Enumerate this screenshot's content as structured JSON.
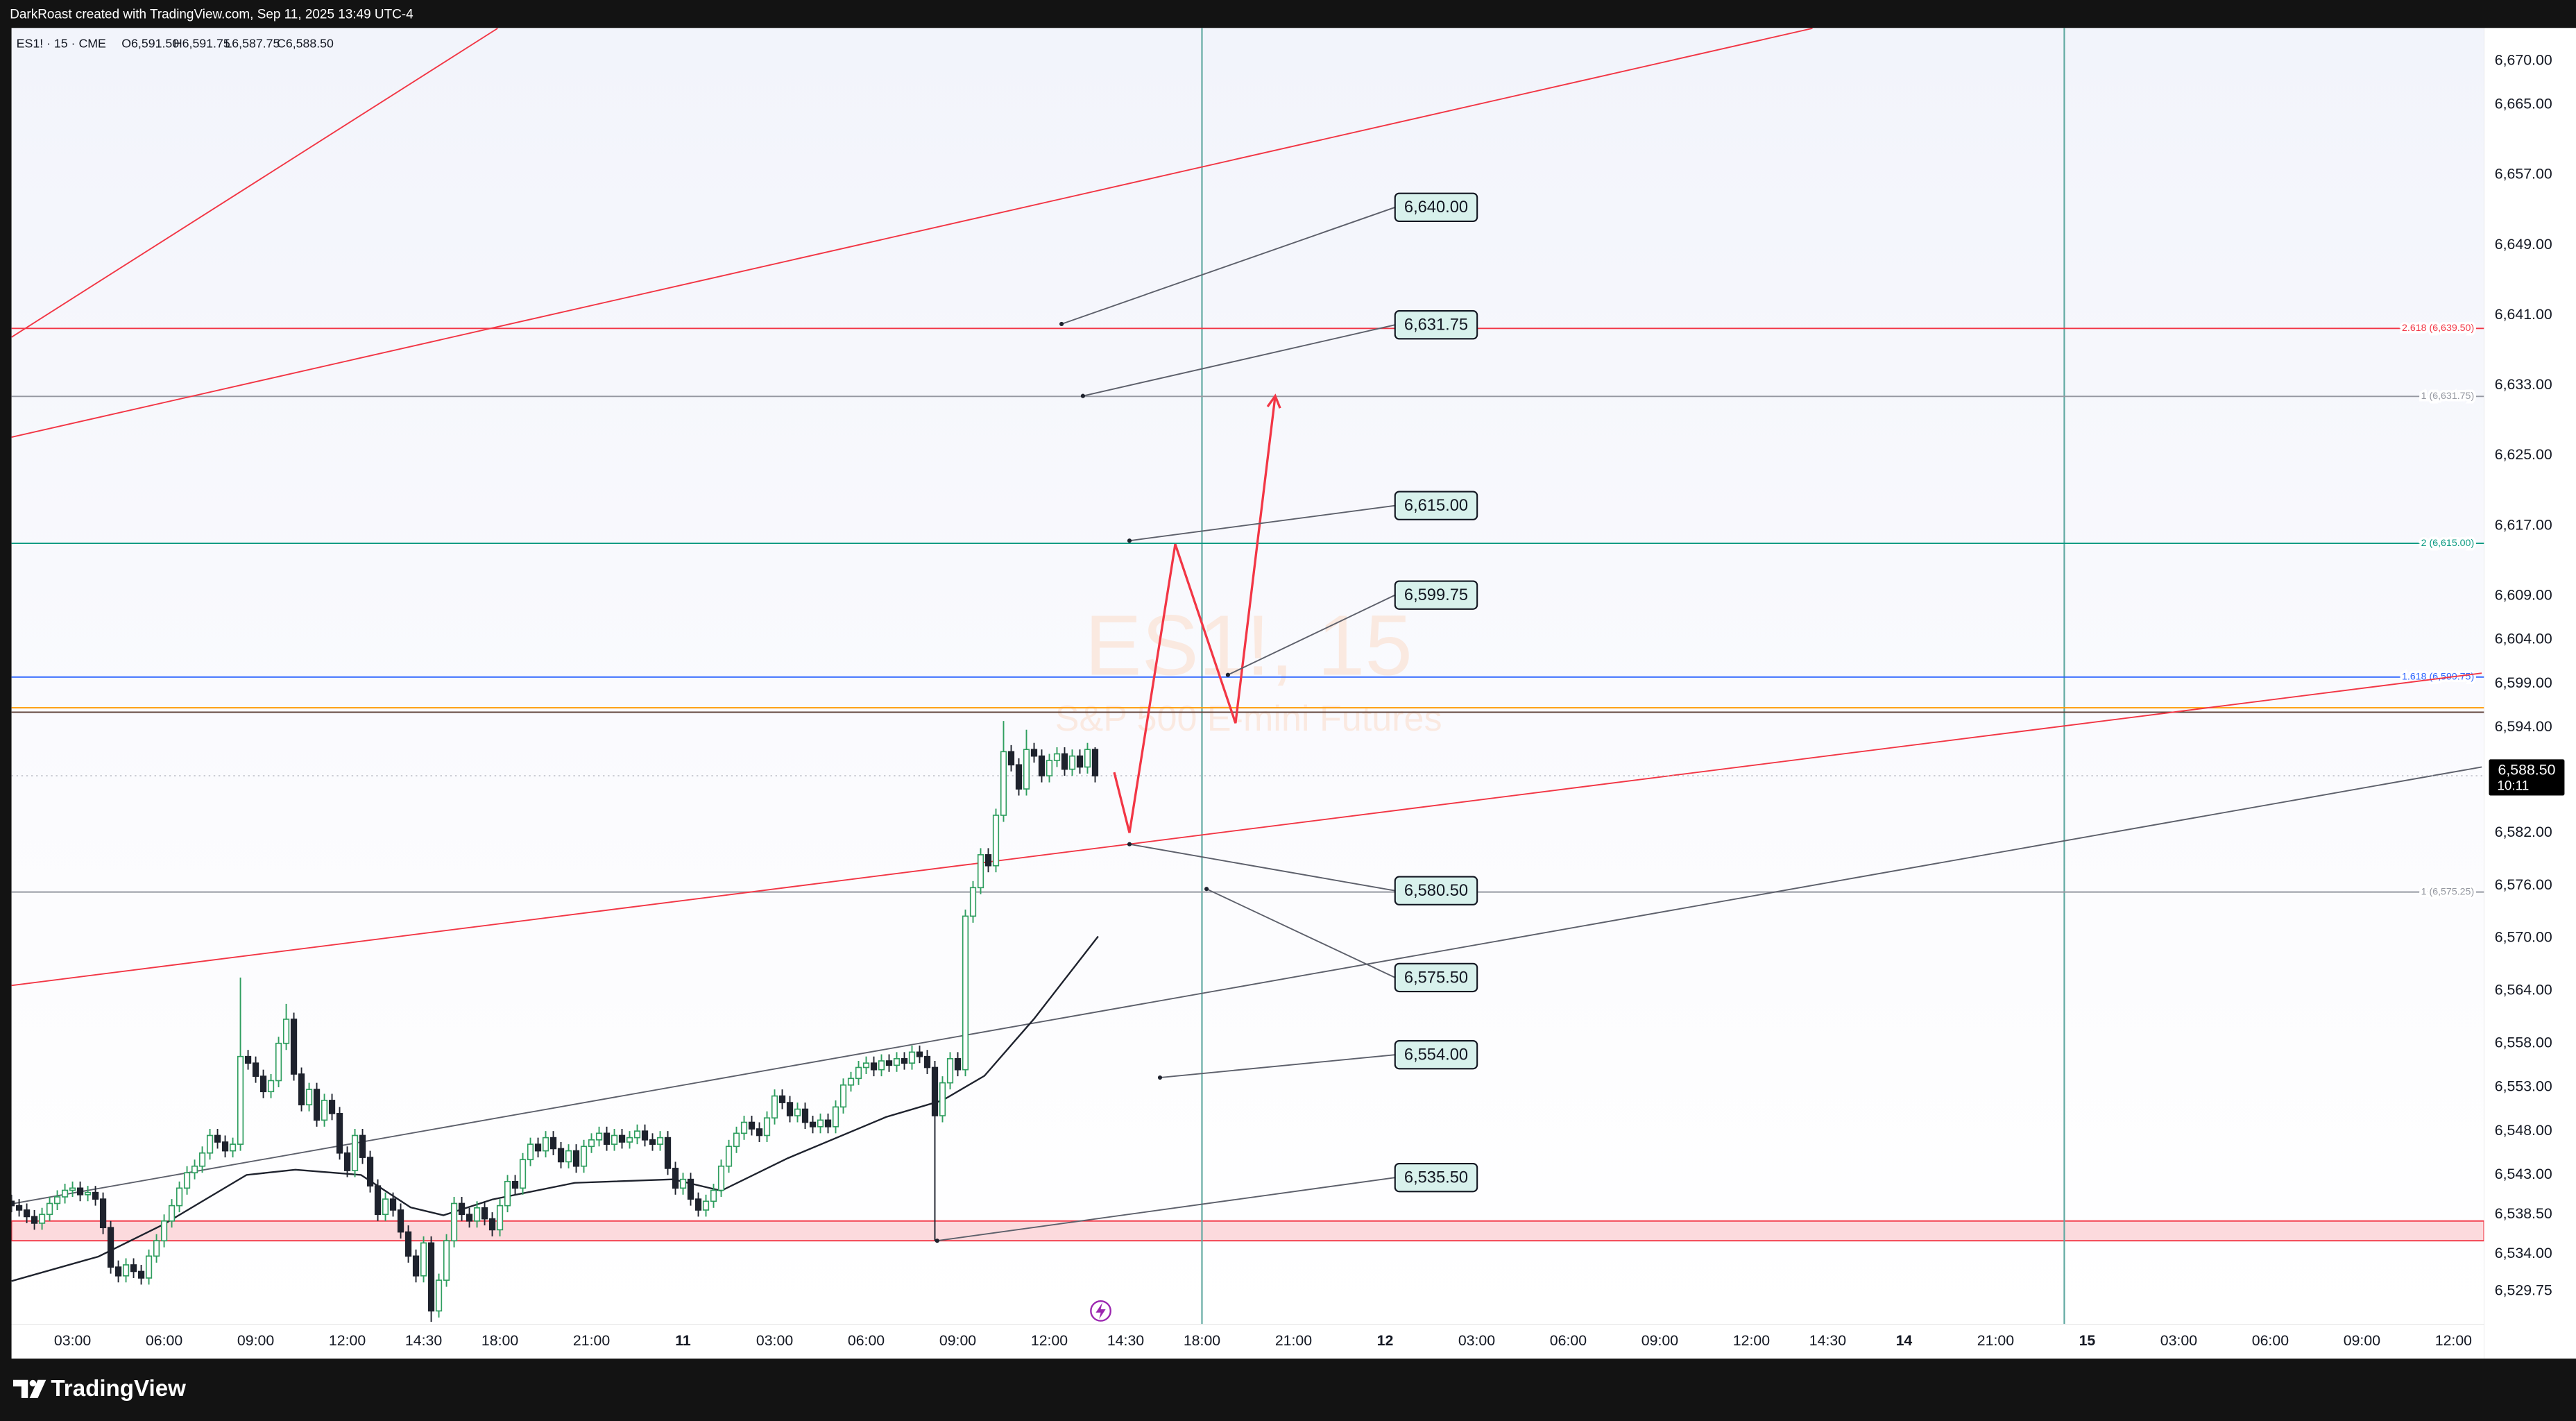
{
  "header": {
    "credit": "DarkRoast created with TradingView.com, Sep 11, 2025 13:49 UTC-4"
  },
  "footer": {
    "brand": "TradingView"
  },
  "chart_data": {
    "type": "candlestick",
    "symbol": "ES1! · 15 · CME",
    "ohlc_legend": [
      {
        "value": 6591.5,
        "label": "O6,591.50"
      },
      {
        "value": 6591.75,
        "label": "H6,591.75"
      },
      {
        "value": 6587.75,
        "label": "L6,587.75"
      },
      {
        "value": 6588.5,
        "label": "C6,588.50"
      }
    ],
    "watermark": {
      "title": "ES1!, 15",
      "subtitle": "S&P 500 E-mini Futures"
    },
    "up_color": "#2f9e5f",
    "down_color": "#1e222d",
    "xlim": [
      0,
      324
    ],
    "xticks": [
      {
        "value": 8,
        "label": "03:00"
      },
      {
        "value": 20,
        "label": "06:00"
      },
      {
        "value": 32,
        "label": "09:00"
      },
      {
        "value": 44,
        "label": "12:00"
      },
      {
        "value": 54,
        "label": "14:30"
      },
      {
        "value": 64,
        "label": "18:00"
      },
      {
        "value": 76,
        "label": "21:00"
      },
      {
        "value": 88,
        "label": "11"
      },
      {
        "value": 100,
        "label": "03:00"
      },
      {
        "value": 112,
        "label": "06:00"
      },
      {
        "value": 124,
        "label": "09:00"
      },
      {
        "value": 136,
        "label": "12:00"
      },
      {
        "value": 146,
        "label": "14:30"
      },
      {
        "value": 156,
        "label": "18:00"
      },
      {
        "value": 168,
        "label": "21:00"
      },
      {
        "value": 180,
        "label": "12"
      },
      {
        "value": 192,
        "label": "03:00"
      },
      {
        "value": 204,
        "label": "06:00"
      },
      {
        "value": 216,
        "label": "09:00"
      },
      {
        "value": 228,
        "label": "12:00"
      },
      {
        "value": 238,
        "label": "14:30"
      },
      {
        "value": 248,
        "label": "14"
      },
      {
        "value": 260,
        "label": "21:00"
      },
      {
        "value": 272,
        "label": "15"
      },
      {
        "value": 284,
        "label": "03:00"
      },
      {
        "value": 296,
        "label": "06:00"
      },
      {
        "value": 308,
        "label": "09:00"
      },
      {
        "value": 320,
        "label": "12:00"
      }
    ],
    "ylim": [
      6526,
      6673.75
    ],
    "yticks": [
      {
        "value": 6670,
        "label": "6,670.00"
      },
      {
        "value": 6665,
        "label": "6,665.00"
      },
      {
        "value": 6657,
        "label": "6,657.00"
      },
      {
        "value": 6649,
        "label": "6,649.00"
      },
      {
        "value": 6641,
        "label": "6,641.00"
      },
      {
        "value": 6633,
        "label": "6,633.00"
      },
      {
        "value": 6625,
        "label": "6,625.00"
      },
      {
        "value": 6617,
        "label": "6,617.00"
      },
      {
        "value": 6609,
        "label": "6,609.00"
      },
      {
        "value": 6604,
        "label": "6,604.00"
      },
      {
        "value": 6599,
        "label": "6,599.00"
      },
      {
        "value": 6594,
        "label": "6,594.00"
      },
      {
        "value": 6582,
        "label": "6,582.00"
      },
      {
        "value": 6576,
        "label": "6,576.00"
      },
      {
        "value": 6570,
        "label": "6,570.00"
      },
      {
        "value": 6564,
        "label": "6,564.00"
      },
      {
        "value": 6558,
        "label": "6,558.00"
      },
      {
        "value": 6553,
        "label": "6,553.00"
      },
      {
        "value": 6548,
        "label": "6,548.00"
      },
      {
        "value": 6543,
        "label": "6,543.00"
      },
      {
        "value": 6538.5,
        "label": "6,538.50"
      },
      {
        "value": 6534,
        "label": "6,534.00"
      },
      {
        "value": 6529.75,
        "label": "6,529.75"
      }
    ],
    "open": [
      6540,
      6539.5,
      6539,
      6538.25,
      6537.5,
      6538.5,
      6539.75,
      6540.5,
      6541.25,
      6541.5,
      6540.75,
      6541,
      6540.25,
      6537,
      6532.5,
      6531.5,
      6532.75,
      6532,
      6531.25,
      6533.75,
      6535.5,
      6537.75,
      6539.5,
      6541.5,
      6543.25,
      6544,
      6545.5,
      6547.5,
      6546.75,
      6545.75,
      6546.5,
      6556.5,
      6555.75,
      6554.25,
      6552.5,
      6553.75,
      6558,
      6560.75,
      6554.5,
      6551,
      6552.75,
      6549.25,
      6551.5,
      6550,
      6545.5,
      6543.5,
      6547.5,
      6545,
      6541.75,
      6538.5,
      6540.25,
      6539,
      6536.5,
      6533.75,
      6531.5,
      6535.25,
      6527.5,
      6531,
      6535.5,
      6539.75,
      6538.5,
      6537.75,
      6539.25,
      6538,
      6536.75,
      6539.5,
      6542.25,
      6541.5,
      6544.75,
      6546.5,
      6545.75,
      6547.25,
      6546,
      6544.5,
      6545.75,
      6544,
      6546.25,
      6547,
      6547.75,
      6546.5,
      6547.5,
      6546.75,
      6547.25,
      6548,
      6547,
      6546.5,
      6547.25,
      6543.75,
      6541.5,
      6542.5,
      6540.25,
      6539,
      6540,
      6541.25,
      6544,
      6546.25,
      6547.75,
      6549,
      6548.25,
      6547.5,
      6549.5,
      6552,
      6551.25,
      6549.75,
      6550.5,
      6549,
      6548.5,
      6549.25,
      6548.5,
      6550.75,
      6553.25,
      6554,
      6555.25,
      6555.75,
      6555,
      6556,
      6555.5,
      6556.25,
      6555.75,
      6557,
      6556.5,
      6555.25,
      6549.75,
      6553.5,
      6556.25,
      6555,
      6572.5,
      6575.75,
      6579.5,
      6578.25,
      6584,
      6591.25,
      6589.75,
      6587,
      6591.5,
      6590.75,
      6588.5,
      6590.25,
      6591,
      6589.25,
      6590.75,
      6589.5,
      6591.5
    ],
    "high": [
      6540.75,
      6540.25,
      6539.75,
      6539,
      6539.25,
      6540.5,
      6541.25,
      6542,
      6542.25,
      6542.25,
      6541.75,
      6541.75,
      6541,
      6537.75,
      6533.25,
      6533.5,
      6533.5,
      6532.75,
      6534.5,
      6536.25,
      6538.5,
      6540.25,
      6542.25,
      6544,
      6544.75,
      6546.25,
      6548.25,
      6548.25,
      6547.5,
      6547.25,
      6565.5,
      6557.25,
      6556.5,
      6555,
      6554.5,
      6558.75,
      6562.5,
      6561.5,
      6555.25,
      6553.5,
      6553.5,
      6552.25,
      6552.25,
      6550.75,
      6546.25,
      6548.25,
      6548.25,
      6545.75,
      6542.5,
      6541,
      6541,
      6539.75,
      6537.25,
      6534.5,
      6536,
      6536,
      6531.75,
      6536.25,
      6540.5,
      6540.5,
      6539.25,
      6540,
      6540,
      6538.75,
      6540.25,
      6543,
      6543,
      6545.5,
      6547.25,
      6547.25,
      6548,
      6548,
      6546.75,
      6546.5,
      6546.5,
      6547,
      6547.75,
      6548.5,
      6548.5,
      6548.25,
      6548.25,
      6548,
      6548.75,
      6548.75,
      6547.75,
      6548,
      6548,
      6544.5,
      6543.25,
      6543.25,
      6541,
      6540.75,
      6542,
      6544.75,
      6547,
      6548.5,
      6549.75,
      6549.75,
      6549,
      6550.25,
      6552.75,
      6552.75,
      6552,
      6551.25,
      6551.25,
      6549.75,
      6550,
      6550,
      6551.5,
      6554,
      6554.75,
      6556,
      6556.5,
      6556.5,
      6556.75,
      6556.75,
      6557,
      6557,
      6557.75,
      6557.75,
      6557.25,
      6556,
      6554.25,
      6557,
      6557,
      6573.25,
      6576.5,
      6580.25,
      6580.25,
      6584.75,
      6594.75,
      6592,
      6590.5,
      6593.75,
      6592.25,
      6591.5,
      6591,
      6591.75,
      6591.75,
      6591.5,
      6591.5,
      6592.25,
      6591.75
    ],
    "low": [
      6538.75,
      6538.25,
      6537.5,
      6536.75,
      6536.75,
      6537.75,
      6539,
      6539.75,
      6540.5,
      6540,
      6540,
      6539.5,
      6536.25,
      6531.75,
      6530.75,
      6530.75,
      6531.25,
      6530.5,
      6530.5,
      6533,
      6534.75,
      6537,
      6538.75,
      6540.75,
      6542.5,
      6543.25,
      6544.75,
      6546,
      6545,
      6545,
      6545.75,
      6555,
      6553.5,
      6551.75,
      6551.75,
      6553,
      6557.25,
      6553.75,
      6550.25,
      6550.25,
      6548.5,
      6548.5,
      6549.25,
      6544.75,
      6542.75,
      6542.75,
      6544.25,
      6541,
      6537.75,
      6537.75,
      6538.25,
      6535.75,
      6533,
      6530.75,
      6530.75,
      6526.25,
      6526.75,
      6530.25,
      6534.75,
      6537.75,
      6537,
      6537,
      6537.25,
      6536,
      6536,
      6538.75,
      6540.75,
      6540.75,
      6544,
      6545,
      6545,
      6545.25,
      6543.75,
      6543.75,
      6543.25,
      6543.25,
      6545.5,
      6546.25,
      6545.75,
      6545.75,
      6546,
      6546,
      6546.5,
      6546.25,
      6545.75,
      6545.75,
      6543,
      6540.75,
      6540.75,
      6539.5,
      6538.25,
      6538.25,
      6539.25,
      6540.5,
      6543.25,
      6545.5,
      6547,
      6547.5,
      6546.75,
      6546.75,
      6548.75,
      6550.5,
      6549,
      6549,
      6548.25,
      6547.75,
      6547.75,
      6547.75,
      6547.75,
      6550,
      6552.5,
      6553.25,
      6554.5,
      6554.25,
      6554.25,
      6554.75,
      6554.75,
      6555,
      6555,
      6555.75,
      6554.5,
      6535.5,
      6549,
      6552.75,
      6554.25,
      6554.25,
      6571.75,
      6575,
      6577.5,
      6577.5,
      6583.25,
      6589,
      6586.25,
      6586.25,
      6590,
      6587.75,
      6587.75,
      6589.5,
      6588.5,
      6588.5,
      6588.75,
      6588.75,
      6587.75
    ],
    "close": [
      6539.5,
      6539,
      6538.25,
      6537.5,
      6538.5,
      6539.75,
      6540.5,
      6541.25,
      6541.5,
      6540.75,
      6541,
      6540.25,
      6537,
      6532.5,
      6531.5,
      6532.75,
      6532,
      6531.25,
      6533.75,
      6535.5,
      6537.75,
      6539.5,
      6541.5,
      6543.25,
      6544,
      6545.5,
      6547.5,
      6546.75,
      6545.75,
      6546.5,
      6556.5,
      6555.75,
      6554.25,
      6552.5,
      6553.75,
      6558,
      6560.75,
      6554.5,
      6551,
      6552.75,
      6549.25,
      6551.5,
      6550,
      6545.5,
      6543.5,
      6547.5,
      6545,
      6541.75,
      6538.5,
      6540.25,
      6539,
      6536.5,
      6533.75,
      6531.5,
      6535.25,
      6527.5,
      6531,
      6535.5,
      6539.75,
      6538.5,
      6537.75,
      6539.25,
      6538,
      6536.75,
      6539.5,
      6542.25,
      6541.5,
      6544.75,
      6546.5,
      6545.75,
      6547.25,
      6546,
      6544.5,
      6545.75,
      6544,
      6546.25,
      6547,
      6547.75,
      6546.5,
      6547.5,
      6546.75,
      6547.25,
      6548,
      6547,
      6546.5,
      6547.25,
      6543.75,
      6541.5,
      6542.5,
      6540.25,
      6539,
      6540,
      6541.25,
      6544,
      6546.25,
      6547.75,
      6549,
      6548.25,
      6547.5,
      6549.5,
      6552,
      6551.25,
      6549.75,
      6550.5,
      6549,
      6548.5,
      6549.25,
      6548.5,
      6550.75,
      6553.25,
      6554,
      6555.25,
      6555.75,
      6555,
      6556,
      6555.5,
      6556.25,
      6555.75,
      6557,
      6556.5,
      6555.25,
      6549.75,
      6553.5,
      6556.25,
      6555,
      6572.5,
      6575.75,
      6579.5,
      6578.25,
      6584,
      6591.25,
      6589.75,
      6587,
      6591.5,
      6590.75,
      6588.5,
      6590.25,
      6591,
      6589.25,
      6590.75,
      6589.5,
      6591.5,
      6588.5
    ],
    "moving_average": {
      "color": "#1e222d",
      "x": [
        0,
        11.4,
        20,
        30.8,
        37.2,
        45.8,
        52.3,
        56.6,
        63,
        73.8,
        86.7,
        93,
        101.7,
        114.6,
        122,
        127.5,
        134,
        142.4
      ],
      "values": [
        6530.9,
        6533.7,
        6537.4,
        6543,
        6543.6,
        6543,
        6539.3,
        6538.4,
        6540.2,
        6542.1,
        6542.5,
        6541.2,
        6544.9,
        6549.6,
        6551.5,
        6554.3,
        6560.8,
        6570.2
      ]
    },
    "last_price": {
      "value": 6588.5,
      "label": "6,588.50"
    },
    "countdown": "10:11",
    "zone": {
      "from": 6535.5,
      "to": 6537.75,
      "color": "#f23645"
    },
    "hlines": [
      {
        "value": 6639.5,
        "color": "#f23645",
        "label": "2.618 (6,639.50)"
      },
      {
        "value": 6631.75,
        "color": "#9598a1",
        "label": "1 (6,631.75)"
      },
      {
        "value": 6615,
        "color": "#089981",
        "label": "2 (6,615.00)"
      },
      {
        "value": 6599.75,
        "color": "#2962ff",
        "label": "1.618 (6,599.75)"
      },
      {
        "value": 6596.25,
        "color": "#ff9800"
      },
      {
        "value": 6595.75,
        "color": "#5d4037"
      },
      {
        "value": 6575.25,
        "color": "#9598a1",
        "label": "1 (6,575.25)"
      }
    ],
    "vlines": [
      {
        "value": 156,
        "color": "#5fa8a0"
      },
      {
        "value": 269,
        "color": "#5fa8a0"
      }
    ],
    "trendlines": [
      {
        "x": [
          0,
          63.7
        ],
        "y": [
          6638.5,
          6673.7
        ],
        "color": "#f23645"
      },
      {
        "x": [
          0,
          236
        ],
        "y": [
          6627.1,
          6673.7
        ],
        "color": "#f23645"
      },
      {
        "x": [
          0,
          323.7
        ],
        "y": [
          6564.6,
          6600.2
        ],
        "color": "#f23645"
      },
      {
        "x": [
          0,
          323.7
        ],
        "y": [
          6539.7,
          6589.5
        ],
        "color": "#5d606b"
      }
    ],
    "annotations": [
      {
        "label": "6,640.00",
        "x": [
          137.6,
          181.3
        ],
        "y": [
          6640,
          6653.3
        ]
      },
      {
        "label": "6,631.75",
        "x": [
          140.4,
          181.3
        ],
        "y": [
          6631.8,
          6639.9
        ]
      },
      {
        "label": "6,615.00",
        "x": [
          146.5,
          181.3
        ],
        "y": [
          6615.3,
          6619.3
        ]
      },
      {
        "label": "6,599.75",
        "x": [
          159.4,
          181.3
        ],
        "y": [
          6600,
          6609.1
        ]
      },
      {
        "label": "6,580.50",
        "x": [
          146.5,
          181.3
        ],
        "y": [
          6580.7,
          6575.4
        ]
      },
      {
        "label": "6,575.50",
        "x": [
          156.6,
          181.3
        ],
        "y": [
          6575.6,
          6565.5
        ]
      },
      {
        "label": "6,554.00",
        "x": [
          150.5,
          181.3
        ],
        "y": [
          6554.1,
          6556.7
        ]
      },
      {
        "label": "6,535.50",
        "x": [
          121.3,
          181.3
        ],
        "y": [
          6535.5,
          6542.7
        ]
      }
    ],
    "projection": {
      "color": "#f23645",
      "x": [
        144.5,
        146.5,
        152.5,
        160.4,
        165.6
      ],
      "y": [
        6588.9,
        6582,
        6614.9,
        6594.5,
        6631.8
      ]
    }
  }
}
